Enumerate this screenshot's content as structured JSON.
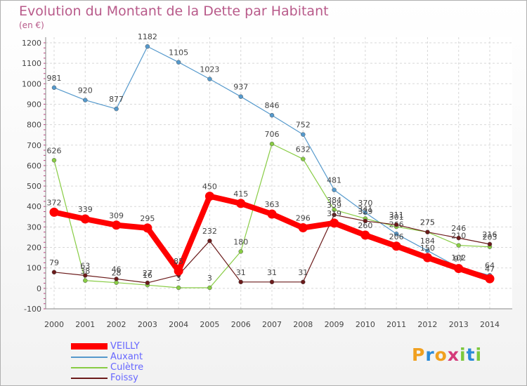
{
  "title": "Evolution du Montant de la Dette par Habitant",
  "subtitle": "(en €)",
  "logo": {
    "text": "Proxiti",
    "letters": [
      "P",
      "r",
      "o",
      "x",
      "i",
      "t",
      "i"
    ],
    "colors": [
      "#f0a020",
      "#2a8ad8",
      "#f0a020",
      "#d43a7a",
      "#7cc83c",
      "#2a8ad8",
      "#7cc83c"
    ]
  },
  "chart_data": {
    "type": "line",
    "x": [
      "2000",
      "2001",
      "2002",
      "2003",
      "2004",
      "2005",
      "2006",
      "2007",
      "2008",
      "2009",
      "2010",
      "2011",
      "2012",
      "2013",
      "2014"
    ],
    "ylim": [
      -100,
      1200
    ],
    "yticks": [
      "-100",
      "0",
      "100",
      "200",
      "300",
      "400",
      "500",
      "600",
      "700",
      "800",
      "900",
      "1000",
      "1100",
      "1200"
    ],
    "grid": true,
    "legend_position": "bottom-left",
    "series": [
      {
        "name": "Auxant",
        "color": "#5599cc",
        "values": [
          981,
          920,
          877,
          1182,
          1105,
          1023,
          937,
          846,
          752,
          481,
          370,
          266,
          184,
          102,
          64
        ],
        "labels": [
          "981",
          "920",
          "877",
          "1182",
          "1105",
          "1023",
          "937",
          "846",
          "752",
          "481",
          "370",
          "266",
          "184",
          "102",
          "64"
        ]
      },
      {
        "name": "Culètre",
        "color": "#88cc44",
        "values": [
          626,
          38,
          28,
          16,
          3,
          3,
          180,
          706,
          632,
          384,
          341,
          301,
          275,
          210,
          203
        ],
        "labels": [
          "626",
          "38",
          "28",
          "16",
          "3",
          "3",
          "180",
          "706",
          "632",
          "384",
          "341",
          "301",
          "275",
          "210",
          "203"
        ]
      },
      {
        "name": "Foissy",
        "color": "#6b1a1a",
        "values": [
          79,
          63,
          46,
          27,
          65,
          232,
          31,
          31,
          31,
          359,
          329,
          311,
          275,
          246,
          216
        ],
        "labels": [
          "79",
          "63",
          "46",
          "27",
          "65",
          "232",
          "31",
          "31",
          "31",
          "359",
          "329",
          "311",
          "275",
          "246",
          "216"
        ]
      },
      {
        "name": "VEILLY",
        "color": "#ff0000",
        "values": [
          372,
          339,
          309,
          295,
          85,
          450,
          415,
          363,
          296,
          319,
          260,
          206,
          150,
          97,
          47
        ],
        "labels": [
          "372",
          "339",
          "309",
          "295",
          "85",
          "450",
          "415",
          "363",
          "296",
          "319",
          "260",
          "206",
          "150",
          "97",
          "47"
        ]
      }
    ],
    "legend_order": [
      "VEILLY",
      "Auxant",
      "Culètre",
      "Foissy"
    ]
  }
}
